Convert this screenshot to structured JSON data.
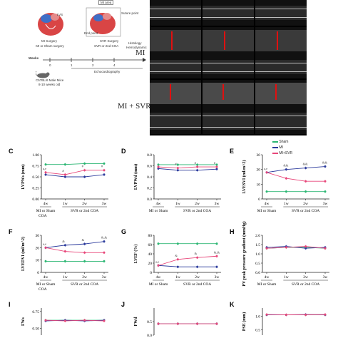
{
  "schematic": {
    "sham_label": "MI or Sham surgery",
    "svr_label": "SVR or 2nd COA",
    "svr_surgery": "SVR Surgery",
    "mi_surgery": "MI Surgery",
    "end_point": "End point",
    "histology": "Histology",
    "hemodynamic": "Hemodynamic",
    "echo_label": "Echocardiography",
    "weeks_label": "Weeks",
    "week_ticks": [
      "0",
      "1",
      "2",
      "4"
    ],
    "mice_label": "C57BL/6 Male Mice",
    "mice_age": "8-10 weeks old",
    "lvs_label": "LVS",
    "lad_label": "LAD",
    "suture_label": "Suture point",
    "mi_area_label": "MI area"
  },
  "echo_rows": [
    "MI",
    "MI + SVR"
  ],
  "legend": {
    "items": [
      {
        "label": "Sham",
        "color": "#2bb673"
      },
      {
        "label": "MI",
        "color": "#2b3a9c"
      },
      {
        "label": "MI+SVR",
        "color": "#e8477a"
      }
    ]
  },
  "x_categories": [
    "4w",
    "1w",
    "2w",
    "3w"
  ],
  "x_group1": "MI or Sham",
  "x_group1b": "COA",
  "x_group2": "SVR or 2nd COA",
  "panels": [
    {
      "id": "C",
      "letter": "C",
      "ylabel": "LVPWs (mm)",
      "yticks": [
        "0.00",
        "0.25",
        "0.50",
        "0.75",
        "1.00"
      ],
      "ylim": [
        0,
        1.0
      ],
      "series": {
        "sham": [
          0.78,
          0.78,
          0.8,
          0.8
        ],
        "mi": [
          0.55,
          0.5,
          0.5,
          0.55
        ],
        "svr": [
          0.6,
          0.55,
          0.65,
          0.65
        ]
      },
      "annotations": [
        "a,e",
        "#",
        "#",
        "#"
      ]
    },
    {
      "id": "D",
      "letter": "D",
      "ylabel": "LVPWd (mm)",
      "yticks": [
        "0.0",
        "0.2",
        "0.4",
        "0.6",
        "0.8"
      ],
      "ylim": [
        0,
        0.8
      ],
      "series": {
        "sham": [
          0.62,
          0.62,
          0.62,
          0.62
        ],
        "mi": [
          0.55,
          0.52,
          0.52,
          0.54
        ],
        "svr": [
          0.58,
          0.56,
          0.58,
          0.58
        ]
      },
      "annotations": [
        "",
        "#",
        "#",
        "#"
      ]
    },
    {
      "id": "E",
      "letter": "E",
      "ylabel": "LVESVI (ml/m^2)",
      "yticks": [
        "0",
        "10",
        "20",
        "30"
      ],
      "ylim": [
        0,
        30
      ],
      "series": {
        "sham": [
          5,
          5,
          5,
          5
        ],
        "mi": [
          18,
          20,
          21,
          22
        ],
        "svr": [
          18,
          14,
          12,
          12
        ]
      },
      "annotations": [
        "a,e",
        "&&",
        "&&",
        "&&"
      ]
    },
    {
      "id": "F",
      "letter": "F",
      "ylabel": "LVEDVI (ml/m^2)",
      "yticks": [
        "0",
        "10",
        "20",
        "30"
      ],
      "ylim": [
        0,
        30
      ],
      "series": {
        "sham": [
          9,
          9,
          9,
          9
        ],
        "mi": [
          20,
          22,
          23,
          25
        ],
        "svr": [
          20,
          17,
          16,
          16
        ]
      },
      "annotations": [
        "a,e",
        "&",
        "&",
        "&,&"
      ]
    },
    {
      "id": "G",
      "letter": "G",
      "ylabel": "LVEF (%)",
      "yticks": [
        "0",
        "20",
        "40",
        "60",
        "80"
      ],
      "ylim": [
        0,
        80
      ],
      "series": {
        "sham": [
          62,
          62,
          62,
          62
        ],
        "mi": [
          15,
          12,
          12,
          12
        ],
        "svr": [
          15,
          28,
          32,
          35
        ]
      },
      "annotations": [
        "a,e",
        "&",
        "&",
        "&,&"
      ]
    },
    {
      "id": "H",
      "letter": "H",
      "ylabel": "PV peak pressure gradient (mmHg)",
      "yticks": [
        "0.0",
        "0.5",
        "1.0",
        "1.5",
        "2.0"
      ],
      "ylim": [
        0,
        2.0
      ],
      "series": {
        "sham": [
          1.3,
          1.35,
          1.35,
          1.3
        ],
        "mi": [
          1.35,
          1.4,
          1.3,
          1.35
        ],
        "svr": [
          1.3,
          1.35,
          1.4,
          1.3
        ]
      },
      "annotations": [
        "",
        "",
        "",
        ""
      ]
    },
    {
      "id": "I",
      "letter": "I",
      "ylabel": "FWs",
      "yticks": [
        "0.50",
        "0.75"
      ],
      "ylim": [
        0.4,
        0.8
      ],
      "series": {
        "sham": [
          0.62,
          0.62,
          0.62,
          0.62
        ],
        "mi": [
          0.61,
          0.62,
          0.61,
          0.62
        ],
        "svr": [
          0.62,
          0.61,
          0.62,
          0.61
        ]
      },
      "annotations": [
        "",
        "",
        "",
        ""
      ]
    },
    {
      "id": "J",
      "letter": "J",
      "ylabel": "FWd",
      "yticks": [
        "0.0",
        "0.5"
      ],
      "ylim": [
        0,
        1.0
      ],
      "series": {
        "sham": [
          0.42,
          0.42,
          0.42,
          0.42
        ],
        "mi": [
          0.42,
          0.42,
          0.42,
          0.42
        ],
        "svr": [
          0.42,
          0.42,
          0.42,
          0.42
        ]
      },
      "annotations": [
        "",
        "",
        "",
        ""
      ]
    },
    {
      "id": "K",
      "letter": "K",
      "ylabel": "PSE (mm)",
      "yticks": [
        "0.5",
        "1.0"
      ],
      "ylim": [
        0.3,
        1.3
      ],
      "series": {
        "sham": [
          1.05,
          1.05,
          1.05,
          1.05
        ],
        "mi": [
          1.05,
          1.05,
          1.06,
          1.05
        ],
        "svr": [
          1.06,
          1.05,
          1.05,
          1.06
        ]
      },
      "annotations": [
        "",
        "",
        "",
        ""
      ]
    }
  ],
  "chart_data": [
    {
      "type": "line",
      "title": "",
      "ylabel": "LVPWs (mm)",
      "categories": [
        "4w",
        "1w",
        "2w",
        "3w"
      ],
      "ylim": [
        0,
        1.0
      ],
      "series": [
        {
          "name": "Sham",
          "values": [
            0.78,
            0.78,
            0.8,
            0.8
          ]
        },
        {
          "name": "MI",
          "values": [
            0.55,
            0.5,
            0.5,
            0.55
          ]
        },
        {
          "name": "MI+SVR",
          "values": [
            0.6,
            0.55,
            0.65,
            0.65
          ]
        }
      ]
    },
    {
      "type": "line",
      "title": "",
      "ylabel": "LVPWd (mm)",
      "categories": [
        "4w",
        "1w",
        "2w",
        "3w"
      ],
      "ylim": [
        0,
        0.8
      ],
      "series": [
        {
          "name": "Sham",
          "values": [
            0.62,
            0.62,
            0.62,
            0.62
          ]
        },
        {
          "name": "MI",
          "values": [
            0.55,
            0.52,
            0.52,
            0.54
          ]
        },
        {
          "name": "MI+SVR",
          "values": [
            0.58,
            0.56,
            0.58,
            0.58
          ]
        }
      ]
    },
    {
      "type": "line",
      "title": "",
      "ylabel": "LVESVI (ml/m^2)",
      "categories": [
        "4w",
        "1w",
        "2w",
        "3w"
      ],
      "ylim": [
        0,
        30
      ],
      "series": [
        {
          "name": "Sham",
          "values": [
            5,
            5,
            5,
            5
          ]
        },
        {
          "name": "MI",
          "values": [
            18,
            20,
            21,
            22
          ]
        },
        {
          "name": "MI+SVR",
          "values": [
            18,
            14,
            12,
            12
          ]
        }
      ]
    },
    {
      "type": "line",
      "title": "",
      "ylabel": "LVEDVI (ml/m^2)",
      "categories": [
        "4w",
        "1w",
        "2w",
        "3w"
      ],
      "ylim": [
        0,
        30
      ],
      "series": [
        {
          "name": "Sham",
          "values": [
            9,
            9,
            9,
            9
          ]
        },
        {
          "name": "MI",
          "values": [
            20,
            22,
            23,
            25
          ]
        },
        {
          "name": "MI+SVR",
          "values": [
            20,
            17,
            16,
            16
          ]
        }
      ]
    },
    {
      "type": "line",
      "title": "",
      "ylabel": "LVEF (%)",
      "categories": [
        "4w",
        "1w",
        "2w",
        "3w"
      ],
      "ylim": [
        0,
        80
      ],
      "series": [
        {
          "name": "Sham",
          "values": [
            62,
            62,
            62,
            62
          ]
        },
        {
          "name": "MI",
          "values": [
            15,
            12,
            12,
            12
          ]
        },
        {
          "name": "MI+SVR",
          "values": [
            15,
            28,
            32,
            35
          ]
        }
      ]
    },
    {
      "type": "line",
      "title": "",
      "ylabel": "PV peak pressure gradient (mmHg)",
      "categories": [
        "4w",
        "1w",
        "2w",
        "3w"
      ],
      "ylim": [
        0,
        2.0
      ],
      "series": [
        {
          "name": "Sham",
          "values": [
            1.3,
            1.35,
            1.35,
            1.3
          ]
        },
        {
          "name": "MI",
          "values": [
            1.35,
            1.4,
            1.3,
            1.35
          ]
        },
        {
          "name": "MI+SVR",
          "values": [
            1.3,
            1.35,
            1.4,
            1.3
          ]
        }
      ]
    },
    {
      "type": "line",
      "title": "",
      "ylabel": "FWs",
      "categories": [
        "4w",
        "1w",
        "2w",
        "3w"
      ],
      "ylim": [
        0.4,
        0.8
      ],
      "series": [
        {
          "name": "Sham",
          "values": [
            0.62,
            0.62,
            0.62,
            0.62
          ]
        },
        {
          "name": "MI",
          "values": [
            0.61,
            0.62,
            0.61,
            0.62
          ]
        },
        {
          "name": "MI+SVR",
          "values": [
            0.62,
            0.61,
            0.62,
            0.61
          ]
        }
      ]
    },
    {
      "type": "line",
      "title": "",
      "ylabel": "FWd",
      "categories": [
        "4w",
        "1w",
        "2w",
        "3w"
      ],
      "ylim": [
        0,
        1.0
      ],
      "series": [
        {
          "name": "Sham",
          "values": [
            0.42,
            0.42,
            0.42,
            0.42
          ]
        },
        {
          "name": "MI",
          "values": [
            0.42,
            0.42,
            0.42,
            0.42
          ]
        },
        {
          "name": "MI+SVR",
          "values": [
            0.42,
            0.42,
            0.42,
            0.42
          ]
        }
      ]
    },
    {
      "type": "line",
      "title": "",
      "ylabel": "PSE (mm)",
      "categories": [
        "4w",
        "1w",
        "2w",
        "3w"
      ],
      "ylim": [
        0.3,
        1.3
      ],
      "series": [
        {
          "name": "Sham",
          "values": [
            1.05,
            1.05,
            1.05,
            1.05
          ]
        },
        {
          "name": "MI",
          "values": [
            1.05,
            1.05,
            1.06,
            1.05
          ]
        },
        {
          "name": "MI+SVR",
          "values": [
            1.06,
            1.05,
            1.05,
            1.06
          ]
        }
      ]
    }
  ]
}
